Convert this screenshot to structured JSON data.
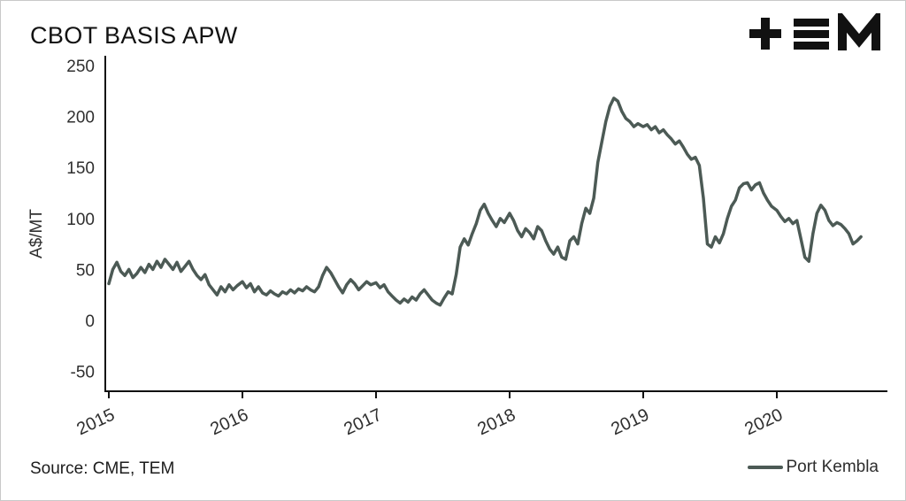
{
  "header": {
    "title": "CBOT BASIS APW",
    "logo_name": "TEM logo"
  },
  "footer": {
    "source": "Source: CME, TEM",
    "legend": {
      "label": "Port Kembla",
      "color": "#4c5a55"
    }
  },
  "colors": {
    "line": "#4c5a55",
    "axis": "#111111",
    "tick_text": "#2f2f2f",
    "background": "#ffffff"
  },
  "chart_data": {
    "type": "line",
    "title": "CBOT BASIS APW",
    "ylabel": "A$/MT",
    "xlabel": "",
    "ylim": [
      -50,
      250
    ],
    "xlim": [
      2015,
      2020.63
    ],
    "yticks": [
      250,
      200,
      150,
      100,
      50,
      0,
      -50
    ],
    "xticks": [
      2015,
      2016,
      2017,
      2018,
      2019,
      2020
    ],
    "grid": false,
    "legend_position": "bottom-right",
    "series": [
      {
        "name": "Port Kembla",
        "color": "#4c5a55",
        "points": [
          [
            2015.0,
            36
          ],
          [
            2015.03,
            50
          ],
          [
            2015.06,
            57
          ],
          [
            2015.09,
            48
          ],
          [
            2015.12,
            44
          ],
          [
            2015.15,
            50
          ],
          [
            2015.18,
            42
          ],
          [
            2015.21,
            46
          ],
          [
            2015.24,
            52
          ],
          [
            2015.27,
            47
          ],
          [
            2015.3,
            55
          ],
          [
            2015.33,
            50
          ],
          [
            2015.36,
            58
          ],
          [
            2015.39,
            52
          ],
          [
            2015.42,
            60
          ],
          [
            2015.45,
            55
          ],
          [
            2015.48,
            50
          ],
          [
            2015.51,
            57
          ],
          [
            2015.54,
            48
          ],
          [
            2015.57,
            53
          ],
          [
            2015.6,
            58
          ],
          [
            2015.63,
            50
          ],
          [
            2015.66,
            44
          ],
          [
            2015.69,
            40
          ],
          [
            2015.72,
            45
          ],
          [
            2015.75,
            35
          ],
          [
            2015.78,
            30
          ],
          [
            2015.81,
            25
          ],
          [
            2015.84,
            33
          ],
          [
            2015.87,
            28
          ],
          [
            2015.9,
            35
          ],
          [
            2015.93,
            30
          ],
          [
            2015.96,
            34
          ],
          [
            2016.0,
            38
          ],
          [
            2016.03,
            32
          ],
          [
            2016.06,
            36
          ],
          [
            2016.09,
            28
          ],
          [
            2016.12,
            33
          ],
          [
            2016.15,
            27
          ],
          [
            2016.18,
            25
          ],
          [
            2016.21,
            29
          ],
          [
            2016.24,
            26
          ],
          [
            2016.27,
            24
          ],
          [
            2016.3,
            28
          ],
          [
            2016.33,
            26
          ],
          [
            2016.36,
            30
          ],
          [
            2016.39,
            27
          ],
          [
            2016.42,
            31
          ],
          [
            2016.45,
            29
          ],
          [
            2016.48,
            33
          ],
          [
            2016.51,
            30
          ],
          [
            2016.54,
            28
          ],
          [
            2016.57,
            33
          ],
          [
            2016.6,
            44
          ],
          [
            2016.63,
            52
          ],
          [
            2016.66,
            47
          ],
          [
            2016.69,
            40
          ],
          [
            2016.72,
            33
          ],
          [
            2016.75,
            27
          ],
          [
            2016.78,
            35
          ],
          [
            2016.81,
            40
          ],
          [
            2016.84,
            36
          ],
          [
            2016.87,
            30
          ],
          [
            2016.9,
            34
          ],
          [
            2016.93,
            38
          ],
          [
            2016.96,
            35
          ],
          [
            2017.0,
            37
          ],
          [
            2017.03,
            32
          ],
          [
            2017.06,
            35
          ],
          [
            2017.09,
            28
          ],
          [
            2017.12,
            24
          ],
          [
            2017.15,
            20
          ],
          [
            2017.18,
            17
          ],
          [
            2017.21,
            21
          ],
          [
            2017.24,
            18
          ],
          [
            2017.27,
            23
          ],
          [
            2017.3,
            20
          ],
          [
            2017.33,
            26
          ],
          [
            2017.36,
            30
          ],
          [
            2017.39,
            25
          ],
          [
            2017.42,
            20
          ],
          [
            2017.45,
            17
          ],
          [
            2017.48,
            15
          ],
          [
            2017.51,
            22
          ],
          [
            2017.54,
            28
          ],
          [
            2017.57,
            26
          ],
          [
            2017.6,
            45
          ],
          [
            2017.63,
            72
          ],
          [
            2017.66,
            80
          ],
          [
            2017.69,
            74
          ],
          [
            2017.72,
            85
          ],
          [
            2017.75,
            95
          ],
          [
            2017.78,
            108
          ],
          [
            2017.81,
            114
          ],
          [
            2017.84,
            105
          ],
          [
            2017.87,
            98
          ],
          [
            2017.9,
            92
          ],
          [
            2017.93,
            100
          ],
          [
            2017.96,
            96
          ],
          [
            2018.0,
            105
          ],
          [
            2018.03,
            98
          ],
          [
            2018.06,
            88
          ],
          [
            2018.09,
            82
          ],
          [
            2018.12,
            90
          ],
          [
            2018.15,
            86
          ],
          [
            2018.18,
            80
          ],
          [
            2018.21,
            92
          ],
          [
            2018.24,
            88
          ],
          [
            2018.27,
            78
          ],
          [
            2018.3,
            70
          ],
          [
            2018.33,
            65
          ],
          [
            2018.36,
            72
          ],
          [
            2018.39,
            62
          ],
          [
            2018.42,
            60
          ],
          [
            2018.45,
            78
          ],
          [
            2018.48,
            82
          ],
          [
            2018.51,
            75
          ],
          [
            2018.54,
            95
          ],
          [
            2018.57,
            110
          ],
          [
            2018.6,
            105
          ],
          [
            2018.63,
            120
          ],
          [
            2018.66,
            155
          ],
          [
            2018.69,
            175
          ],
          [
            2018.72,
            195
          ],
          [
            2018.75,
            210
          ],
          [
            2018.78,
            218
          ],
          [
            2018.81,
            215
          ],
          [
            2018.84,
            205
          ],
          [
            2018.87,
            198
          ],
          [
            2018.9,
            195
          ],
          [
            2018.93,
            190
          ],
          [
            2018.96,
            193
          ],
          [
            2019.0,
            190
          ],
          [
            2019.03,
            192
          ],
          [
            2019.06,
            187
          ],
          [
            2019.09,
            190
          ],
          [
            2019.12,
            184
          ],
          [
            2019.15,
            187
          ],
          [
            2019.18,
            182
          ],
          [
            2019.21,
            178
          ],
          [
            2019.24,
            173
          ],
          [
            2019.27,
            176
          ],
          [
            2019.3,
            170
          ],
          [
            2019.33,
            163
          ],
          [
            2019.36,
            158
          ],
          [
            2019.39,
            160
          ],
          [
            2019.42,
            152
          ],
          [
            2019.45,
            120
          ],
          [
            2019.48,
            75
          ],
          [
            2019.51,
            72
          ],
          [
            2019.54,
            82
          ],
          [
            2019.57,
            76
          ],
          [
            2019.6,
            85
          ],
          [
            2019.63,
            100
          ],
          [
            2019.66,
            112
          ],
          [
            2019.69,
            118
          ],
          [
            2019.72,
            130
          ],
          [
            2019.75,
            134
          ],
          [
            2019.78,
            135
          ],
          [
            2019.81,
            128
          ],
          [
            2019.84,
            133
          ],
          [
            2019.87,
            135
          ],
          [
            2019.9,
            125
          ],
          [
            2019.93,
            118
          ],
          [
            2019.96,
            112
          ],
          [
            2020.0,
            108
          ],
          [
            2020.03,
            102
          ],
          [
            2020.06,
            97
          ],
          [
            2020.09,
            100
          ],
          [
            2020.12,
            95
          ],
          [
            2020.15,
            98
          ],
          [
            2020.18,
            80
          ],
          [
            2020.21,
            62
          ],
          [
            2020.24,
            58
          ],
          [
            2020.27,
            85
          ],
          [
            2020.3,
            105
          ],
          [
            2020.33,
            113
          ],
          [
            2020.36,
            108
          ],
          [
            2020.39,
            98
          ],
          [
            2020.42,
            93
          ],
          [
            2020.45,
            96
          ],
          [
            2020.48,
            94
          ],
          [
            2020.51,
            90
          ],
          [
            2020.54,
            85
          ],
          [
            2020.57,
            75
          ],
          [
            2020.6,
            78
          ],
          [
            2020.63,
            82
          ]
        ]
      }
    ]
  }
}
